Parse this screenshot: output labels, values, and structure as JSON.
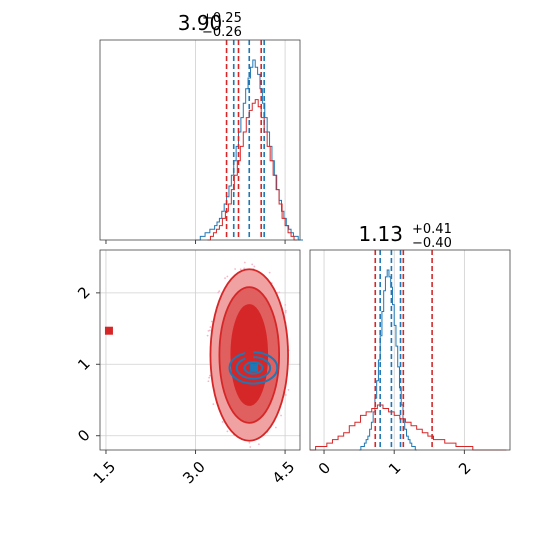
{
  "colors": {
    "blue": "#1f77b4",
    "red": "#d62728",
    "red_light": "#f0a1a1",
    "red_mid": "#e06060",
    "grid": "#d0d0d0",
    "scatter_pink": "#f4b6c8"
  },
  "chart_data": [
    {
      "type": "histogram",
      "panel": "top-left",
      "title": {
        "value": "3.90",
        "plus": "+0.25",
        "minus": "−0.26"
      },
      "xlim": [
        1.4,
        4.75
      ],
      "grid": true,
      "series": [
        {
          "name": "",
          "color": "blue",
          "bin_width": 0.04,
          "bin_start": 3.0,
          "counts": [
            0,
            0,
            1,
            1,
            2,
            2,
            3,
            3,
            4,
            5,
            6,
            8,
            10,
            12,
            15,
            18,
            22,
            26,
            30,
            34,
            38,
            42,
            45,
            48,
            50,
            48,
            46,
            42,
            38,
            34,
            30,
            26,
            22,
            18,
            14,
            11,
            8,
            6,
            4,
            3,
            2,
            1,
            1,
            0,
            0
          ],
          "quantiles": [
            3.64,
            3.9,
            4.15
          ]
        },
        {
          "name": "",
          "color": "red",
          "bin_width": 0.05,
          "bin_start": 3.2,
          "counts": [
            0,
            1,
            2,
            3,
            4,
            6,
            8,
            10,
            14,
            18,
            22,
            26,
            30,
            34,
            36,
            38,
            39,
            37,
            34,
            30,
            26,
            22,
            18,
            14,
            10,
            6,
            4,
            2,
            1,
            0
          ],
          "quantiles": [
            3.52,
            3.72,
            4.1
          ]
        }
      ]
    },
    {
      "type": "histogram",
      "panel": "bottom-right",
      "title": {
        "value": "1.13",
        "plus": "+0.41",
        "minus": "−0.40"
      },
      "xlim": [
        -0.2,
        2.65
      ],
      "x_ticks": [
        "0",
        "1",
        "2"
      ],
      "grid": true,
      "series": [
        {
          "name": "",
          "color": "blue",
          "bin_width": 0.025,
          "bin_start": 0.5,
          "counts": [
            0,
            1,
            1,
            2,
            3,
            4,
            6,
            8,
            11,
            15,
            20,
            26,
            33,
            40,
            46,
            50,
            52,
            50,
            47,
            42,
            36,
            30,
            24,
            18,
            13,
            9,
            6,
            4,
            3,
            2,
            1,
            1,
            0
          ],
          "quantiles": [
            0.8,
            0.96,
            1.09
          ]
        },
        {
          "name": "",
          "color": "red",
          "bin_width": 0.08,
          "bin_start": -0.2,
          "counts": [
            0,
            1,
            1,
            2,
            3,
            4,
            5,
            7,
            8,
            10,
            11,
            12,
            13,
            12,
            11,
            10,
            9,
            8,
            7,
            6,
            5,
            4,
            3,
            3,
            2,
            2,
            1,
            1,
            1,
            0,
            0,
            0,
            0,
            0,
            0
          ],
          "quantiles": [
            0.73,
            1.13,
            1.54
          ]
        }
      ]
    },
    {
      "type": "contour",
      "panel": "bottom-left",
      "xlim": [
        1.4,
        4.75
      ],
      "ylim": [
        -0.2,
        2.6
      ],
      "x_ticks": [
        "1.5",
        "3.0",
        "4.5"
      ],
      "y_ticks": [
        "0",
        "1",
        "2"
      ],
      "grid": true,
      "red_contours": {
        "center": [
          3.9,
          1.13
        ],
        "radii": [
          [
            0.3,
            0.7
          ],
          [
            0.5,
            0.95
          ],
          [
            0.65,
            1.2
          ]
        ]
      },
      "blue_contours": {
        "center": [
          3.97,
          0.95
        ],
        "radii": [
          [
            0.15,
            0.08
          ],
          [
            0.28,
            0.15
          ],
          [
            0.4,
            0.22
          ]
        ]
      },
      "markers": [
        {
          "color": "red",
          "x": 1.55,
          "y": 1.47
        },
        {
          "color": "red",
          "x": 3.9,
          "y": 1.13
        },
        {
          "color": "blue",
          "x": 3.98,
          "y": 0.95
        }
      ]
    }
  ]
}
